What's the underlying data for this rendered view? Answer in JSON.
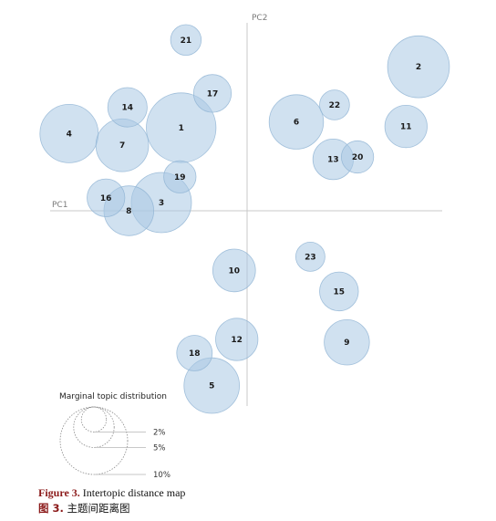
{
  "chart_data": {
    "type": "scatter",
    "title": "Intertopic distance map",
    "x_axis_label": "PC1",
    "y_axis_label": "PC2",
    "xlim": [
      -1.1,
      1.1
    ],
    "ylim": [
      -1.05,
      1.05
    ],
    "grid": false,
    "bubble_fill": "#a9c9e3",
    "bubble_stroke": "#8fb3d3",
    "axis_color": "#c8c8c8",
    "topics": [
      {
        "id": "1",
        "x": -0.371,
        "y": 0.455,
        "r": 0.196
      },
      {
        "id": "2",
        "x": 0.964,
        "y": 0.789,
        "r": 0.174
      },
      {
        "id": "3",
        "x": -0.482,
        "y": 0.045,
        "r": 0.169
      },
      {
        "id": "4",
        "x": -1.001,
        "y": 0.423,
        "r": 0.164
      },
      {
        "id": "5",
        "x": -0.199,
        "y": -0.958,
        "r": 0.156
      },
      {
        "id": "6",
        "x": 0.277,
        "y": 0.487,
        "r": 0.153
      },
      {
        "id": "7",
        "x": -0.702,
        "y": 0.359,
        "r": 0.148
      },
      {
        "id": "8",
        "x": -0.665,
        "y": 0.0,
        "r": 0.14
      },
      {
        "id": "9",
        "x": 0.561,
        "y": -0.721,
        "r": 0.127
      },
      {
        "id": "10",
        "x": -0.073,
        "y": -0.327,
        "r": 0.12
      },
      {
        "id": "11",
        "x": 0.894,
        "y": 0.462,
        "r": 0.119
      },
      {
        "id": "12",
        "x": -0.058,
        "y": -0.705,
        "r": 0.119
      },
      {
        "id": "13",
        "x": 0.484,
        "y": 0.282,
        "r": 0.114
      },
      {
        "id": "14",
        "x": -0.673,
        "y": 0.567,
        "r": 0.111
      },
      {
        "id": "15",
        "x": 0.517,
        "y": -0.442,
        "r": 0.109
      },
      {
        "id": "16",
        "x": -0.794,
        "y": 0.071,
        "r": 0.106
      },
      {
        "id": "17",
        "x": -0.195,
        "y": 0.643,
        "r": 0.106
      },
      {
        "id": "18",
        "x": -0.296,
        "y": -0.78,
        "r": 0.1
      },
      {
        "id": "19",
        "x": -0.378,
        "y": 0.186,
        "r": 0.091
      },
      {
        "id": "20",
        "x": 0.621,
        "y": 0.295,
        "r": 0.091
      },
      {
        "id": "21",
        "x": -0.344,
        "y": 0.936,
        "r": 0.086
      },
      {
        "id": "22",
        "x": 0.492,
        "y": 0.58,
        "r": 0.084
      },
      {
        "id": "23",
        "x": 0.356,
        "y": -0.252,
        "r": 0.082
      }
    ],
    "legend": {
      "title": "Marginal topic distribution",
      "entries": [
        {
          "label": "2%",
          "relative_size": 0.37
        },
        {
          "label": "5%",
          "relative_size": 0.6
        },
        {
          "label": "10%",
          "relative_size": 1.0
        }
      ]
    }
  },
  "caption": {
    "en_prefix": "Figure 3.",
    "en_text": " Intertopic distance map",
    "zh_prefix": "图 3.",
    "zh_text": " 主题间距离图"
  }
}
